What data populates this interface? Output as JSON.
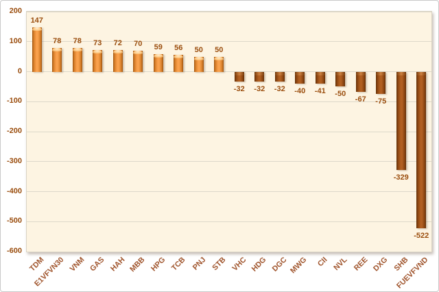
{
  "chart_data": {
    "type": "bar",
    "categories": [
      "TDM",
      "E1VFVN30",
      "VNM",
      "GAS",
      "HAH",
      "MBB",
      "HPG",
      "TCB",
      "PNJ",
      "STB",
      "VHC",
      "HDG",
      "DGC",
      "MWG",
      "CII",
      "NVL",
      "REE",
      "DXG",
      "SHB",
      "FUEVFVND"
    ],
    "values": [
      147,
      78,
      78,
      73,
      72,
      70,
      59,
      56,
      50,
      50,
      -32,
      -32,
      -32,
      -40,
      -41,
      -50,
      -67,
      -75,
      -329,
      -522
    ],
    "data_labels": [
      "147",
      "78",
      "78",
      "73",
      "72",
      "70",
      "59",
      "56",
      "50",
      "50",
      "-32",
      "-32",
      "-32",
      "-40",
      "-41",
      "-50",
      "-67",
      "-75",
      "-329",
      "-522"
    ],
    "title": "",
    "xlabel": "",
    "ylabel": "",
    "ylim": [
      -600,
      200
    ],
    "yticks": [
      200,
      100,
      0,
      -100,
      -200,
      -300,
      -400,
      -500,
      -600
    ],
    "ytick_labels": [
      "200",
      "100",
      "0",
      "-100",
      "-200",
      "-300",
      "-400",
      "-500",
      "-600"
    ],
    "grid": true,
    "legend": false,
    "colors": {
      "positive_bar_center": "#f9a24e",
      "positive_bar_edge": "#9d520e",
      "negative_bar_center": "#b05e20",
      "negative_bar_edge": "#5f2d05",
      "plot_background": "#fdf4e2",
      "chart_background": "#ffffff",
      "gridline": "#ddd8ca",
      "label_text": "#9a4d0d",
      "axis_text": "#a0552d"
    }
  }
}
